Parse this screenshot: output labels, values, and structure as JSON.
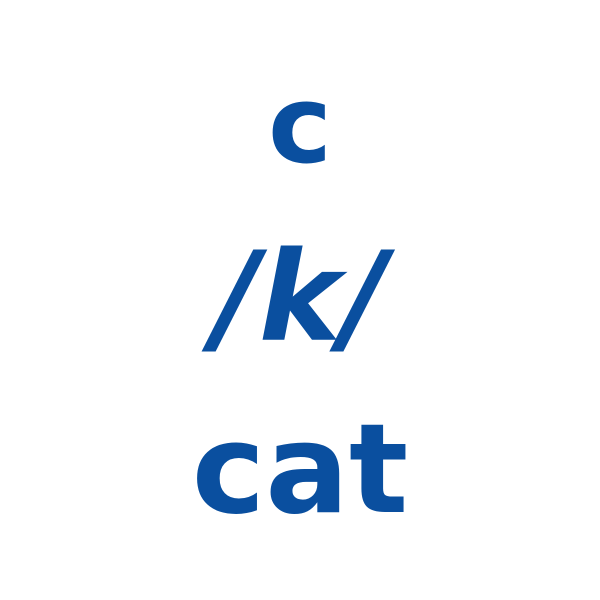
{
  "card": {
    "letter": "c",
    "phoneme": "/k/",
    "word": "cat",
    "text_color": "#0a4f9f",
    "background": "#ffffff"
  }
}
